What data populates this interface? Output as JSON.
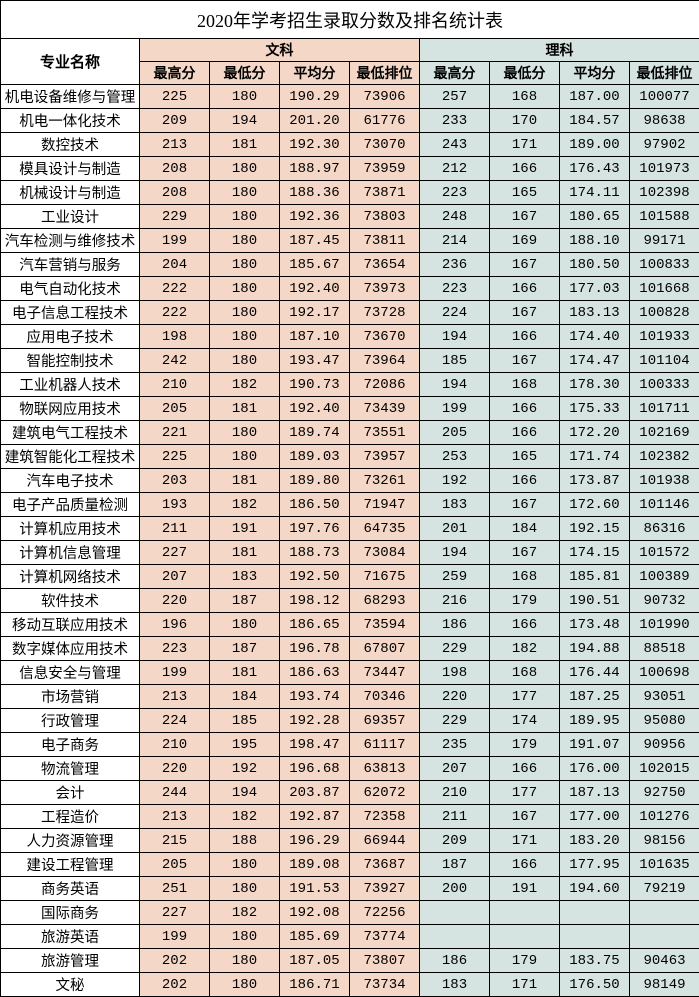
{
  "title": "2020年学考招生录取分数及排名统计表",
  "headers": {
    "name": "专业名称",
    "wen": "文科",
    "li": "理科",
    "sub": [
      "最高分",
      "最低分",
      "平均分",
      "最低排位",
      "最高分",
      "最低分",
      "平均分",
      "最低排位"
    ]
  },
  "colors": {
    "wen_bg": "#f4d7c7",
    "li_bg": "#d5e3e1",
    "border": "#000000",
    "title_bg": "#ffffff"
  },
  "rows": [
    {
      "name": "机电设备维修与管理",
      "w": [
        "225",
        "180",
        "190.29",
        "73906"
      ],
      "l": [
        "257",
        "168",
        "187.00",
        "100077"
      ]
    },
    {
      "name": "机电一体化技术",
      "w": [
        "209",
        "194",
        "201.20",
        "61776"
      ],
      "l": [
        "233",
        "170",
        "184.57",
        "98638"
      ]
    },
    {
      "name": "数控技术",
      "w": [
        "213",
        "181",
        "192.30",
        "73070"
      ],
      "l": [
        "243",
        "171",
        "189.00",
        "97902"
      ]
    },
    {
      "name": "模具设计与制造",
      "w": [
        "208",
        "180",
        "188.97",
        "73959"
      ],
      "l": [
        "212",
        "166",
        "176.43",
        "101973"
      ]
    },
    {
      "name": "机械设计与制造",
      "w": [
        "208",
        "180",
        "188.36",
        "73871"
      ],
      "l": [
        "223",
        "165",
        "174.11",
        "102398"
      ]
    },
    {
      "name": "工业设计",
      "w": [
        "229",
        "180",
        "192.36",
        "73803"
      ],
      "l": [
        "248",
        "167",
        "180.65",
        "101588"
      ]
    },
    {
      "name": "汽车检测与维修技术",
      "w": [
        "199",
        "180",
        "187.45",
        "73811"
      ],
      "l": [
        "214",
        "169",
        "188.10",
        "99171"
      ]
    },
    {
      "name": "汽车营销与服务",
      "w": [
        "204",
        "180",
        "185.67",
        "73654"
      ],
      "l": [
        "236",
        "167",
        "180.50",
        "100833"
      ]
    },
    {
      "name": "电气自动化技术",
      "w": [
        "222",
        "180",
        "192.40",
        "73973"
      ],
      "l": [
        "223",
        "166",
        "177.03",
        "101668"
      ]
    },
    {
      "name": "电子信息工程技术",
      "w": [
        "222",
        "180",
        "192.17",
        "73728"
      ],
      "l": [
        "224",
        "167",
        "183.13",
        "100828"
      ]
    },
    {
      "name": "应用电子技术",
      "w": [
        "198",
        "180",
        "187.10",
        "73670"
      ],
      "l": [
        "194",
        "166",
        "174.40",
        "101933"
      ]
    },
    {
      "name": "智能控制技术",
      "w": [
        "242",
        "180",
        "193.47",
        "73964"
      ],
      "l": [
        "185",
        "167",
        "174.47",
        "101104"
      ]
    },
    {
      "name": "工业机器人技术",
      "w": [
        "210",
        "182",
        "190.73",
        "72086"
      ],
      "l": [
        "194",
        "168",
        "178.30",
        "100333"
      ]
    },
    {
      "name": "物联网应用技术",
      "w": [
        "205",
        "181",
        "192.40",
        "73439"
      ],
      "l": [
        "199",
        "166",
        "175.33",
        "101711"
      ]
    },
    {
      "name": "建筑电气工程技术",
      "w": [
        "221",
        "180",
        "189.74",
        "73551"
      ],
      "l": [
        "205",
        "166",
        "172.20",
        "102169"
      ]
    },
    {
      "name": "建筑智能化工程技术",
      "w": [
        "225",
        "180",
        "189.03",
        "73957"
      ],
      "l": [
        "253",
        "165",
        "171.74",
        "102382"
      ]
    },
    {
      "name": "汽车电子技术",
      "w": [
        "203",
        "181",
        "189.80",
        "73261"
      ],
      "l": [
        "192",
        "166",
        "173.87",
        "101938"
      ]
    },
    {
      "name": "电子产品质量检测",
      "w": [
        "193",
        "182",
        "186.50",
        "71947"
      ],
      "l": [
        "183",
        "167",
        "172.60",
        "101146"
      ]
    },
    {
      "name": "计算机应用技术",
      "w": [
        "211",
        "191",
        "197.76",
        "64735"
      ],
      "l": [
        "201",
        "184",
        "192.15",
        "86316"
      ]
    },
    {
      "name": "计算机信息管理",
      "w": [
        "227",
        "181",
        "188.73",
        "73084"
      ],
      "l": [
        "194",
        "167",
        "174.15",
        "101572"
      ]
    },
    {
      "name": "计算机网络技术",
      "w": [
        "207",
        "183",
        "192.50",
        "71675"
      ],
      "l": [
        "259",
        "168",
        "185.81",
        "100389"
      ]
    },
    {
      "name": "软件技术",
      "w": [
        "220",
        "187",
        "198.12",
        "68293"
      ],
      "l": [
        "216",
        "179",
        "190.51",
        "90732"
      ]
    },
    {
      "name": "移动互联应用技术",
      "w": [
        "196",
        "180",
        "186.65",
        "73594"
      ],
      "l": [
        "186",
        "166",
        "173.48",
        "101990"
      ]
    },
    {
      "name": "数字媒体应用技术",
      "w": [
        "223",
        "187",
        "196.78",
        "67807"
      ],
      "l": [
        "229",
        "182",
        "194.88",
        "88518"
      ]
    },
    {
      "name": "信息安全与管理",
      "w": [
        "199",
        "181",
        "186.63",
        "73447"
      ],
      "l": [
        "198",
        "168",
        "176.44",
        "100698"
      ]
    },
    {
      "name": "市场营销",
      "w": [
        "213",
        "184",
        "193.74",
        "70346"
      ],
      "l": [
        "220",
        "177",
        "187.25",
        "93051"
      ]
    },
    {
      "name": "行政管理",
      "w": [
        "224",
        "185",
        "192.28",
        "69357"
      ],
      "l": [
        "229",
        "174",
        "189.95",
        "95080"
      ]
    },
    {
      "name": "电子商务",
      "w": [
        "210",
        "195",
        "198.47",
        "61117"
      ],
      "l": [
        "235",
        "179",
        "191.07",
        "90956"
      ]
    },
    {
      "name": "物流管理",
      "w": [
        "220",
        "192",
        "196.68",
        "63813"
      ],
      "l": [
        "207",
        "166",
        "176.00",
        "102015"
      ]
    },
    {
      "name": "会计",
      "w": [
        "244",
        "194",
        "203.87",
        "62072"
      ],
      "l": [
        "210",
        "177",
        "187.13",
        "92750"
      ]
    },
    {
      "name": "工程造价",
      "w": [
        "213",
        "182",
        "192.87",
        "72358"
      ],
      "l": [
        "211",
        "167",
        "177.00",
        "101276"
      ]
    },
    {
      "name": "人力资源管理",
      "w": [
        "215",
        "188",
        "196.29",
        "66944"
      ],
      "l": [
        "209",
        "171",
        "183.20",
        "98156"
      ]
    },
    {
      "name": "建设工程管理",
      "w": [
        "205",
        "180",
        "189.08",
        "73687"
      ],
      "l": [
        "187",
        "166",
        "177.95",
        "101635"
      ]
    },
    {
      "name": "商务英语",
      "w": [
        "251",
        "180",
        "191.53",
        "73927"
      ],
      "l": [
        "200",
        "191",
        "194.60",
        "79219"
      ]
    },
    {
      "name": "国际商务",
      "w": [
        "227",
        "182",
        "192.08",
        "72256"
      ],
      "l": [
        "",
        "",
        "",
        ""
      ]
    },
    {
      "name": "旅游英语",
      "w": [
        "199",
        "180",
        "185.69",
        "73774"
      ],
      "l": [
        "",
        "",
        "",
        ""
      ]
    },
    {
      "name": "旅游管理",
      "w": [
        "202",
        "180",
        "187.05",
        "73807"
      ],
      "l": [
        "186",
        "179",
        "183.75",
        "90463"
      ]
    },
    {
      "name": "文秘",
      "w": [
        "202",
        "180",
        "186.71",
        "73734"
      ],
      "l": [
        "183",
        "171",
        "176.50",
        "98149"
      ]
    }
  ]
}
